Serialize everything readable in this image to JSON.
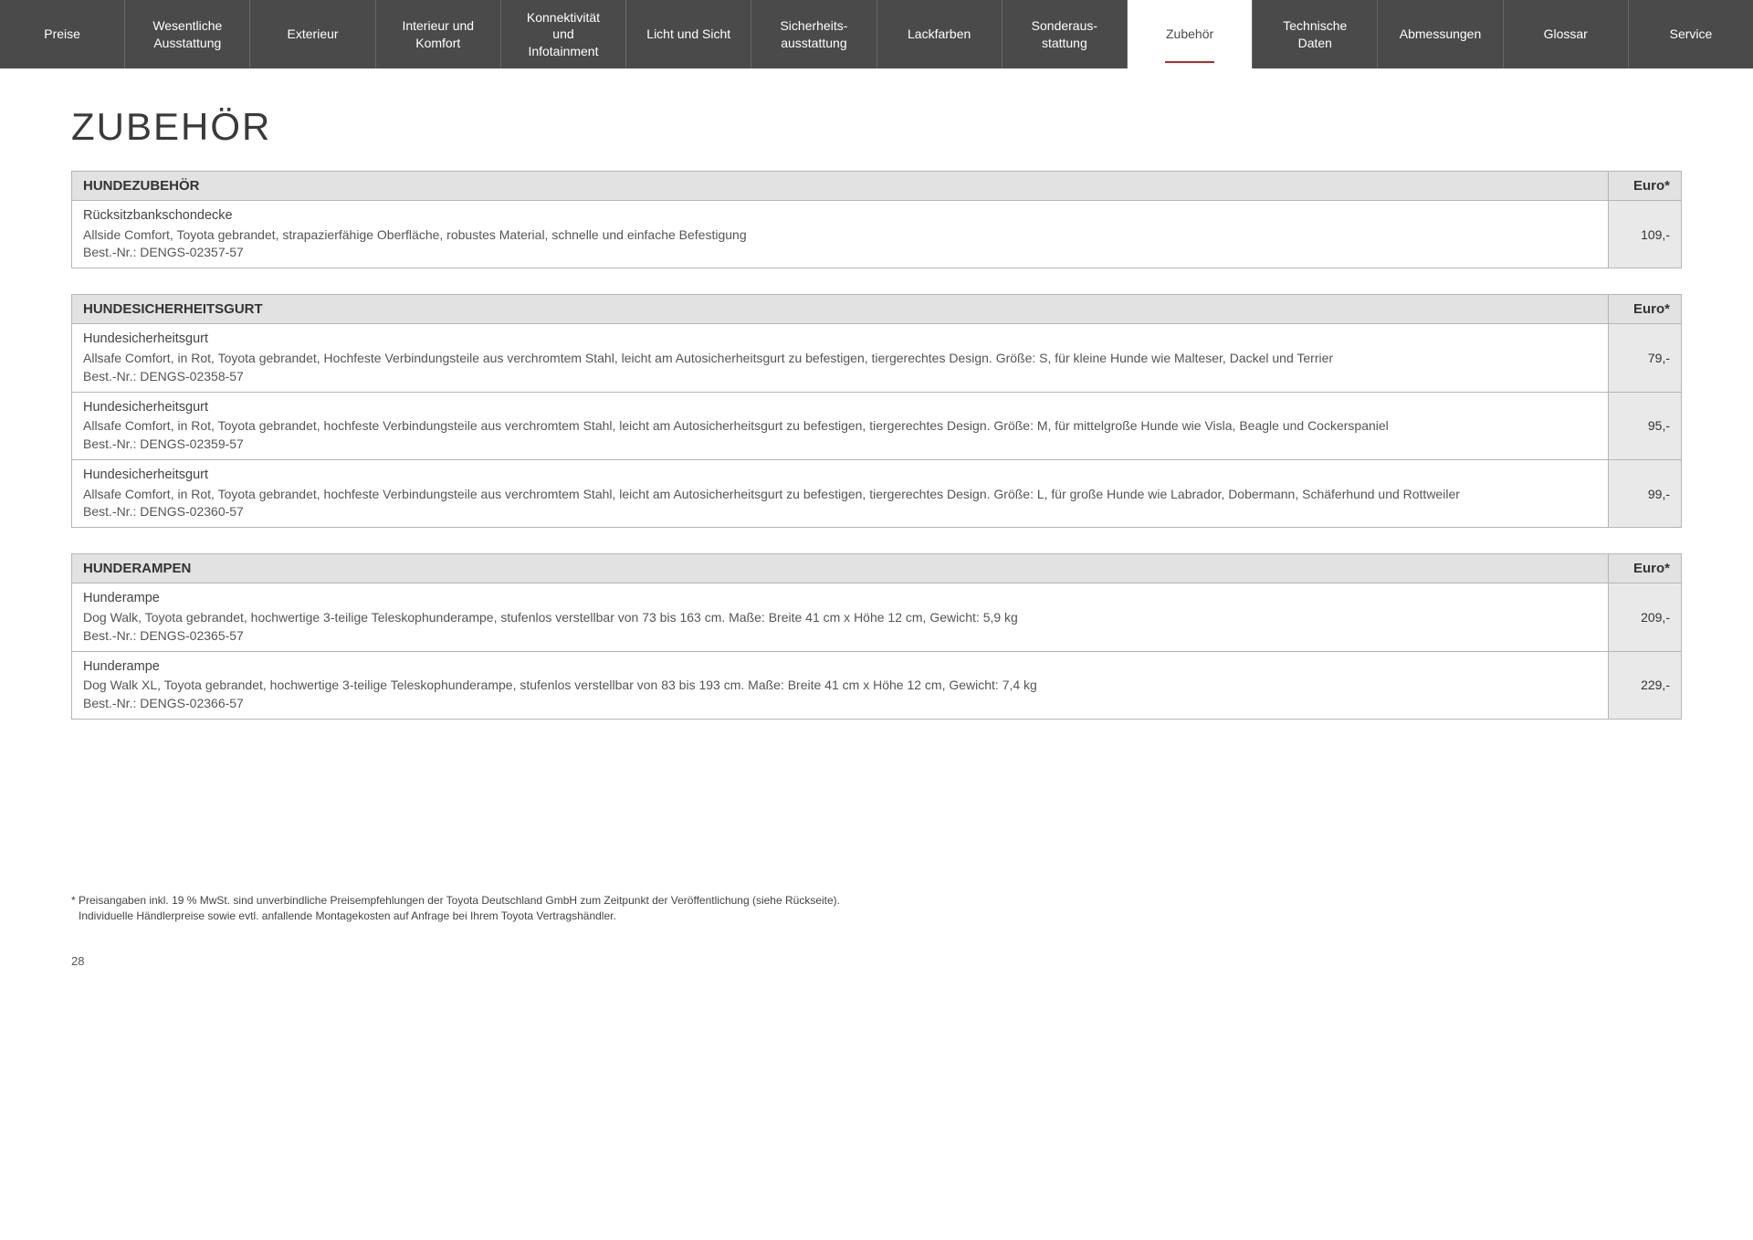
{
  "nav": {
    "items": [
      {
        "label": "Preise"
      },
      {
        "label": "Wesentliche\nAusstattung"
      },
      {
        "label": "Exterieur"
      },
      {
        "label": "Interieur und\nKomfort"
      },
      {
        "label": "Konnektivität\nund\nInfotainment"
      },
      {
        "label": "Licht und Sicht"
      },
      {
        "label": "Sicherheits-\nausstattung"
      },
      {
        "label": "Lackfarben"
      },
      {
        "label": "Sonderaus-\nstattung"
      },
      {
        "label": "Zubehör",
        "active": true
      },
      {
        "label": "Technische\nDaten"
      },
      {
        "label": "Abmessungen"
      },
      {
        "label": "Glossar"
      },
      {
        "label": "Service"
      }
    ]
  },
  "page_title": "ZUBEHÖR",
  "price_header": "Euro*",
  "sections": [
    {
      "title": "HUNDEZUBEHÖR",
      "items": [
        {
          "name": "Rücksitzbankschondecke",
          "desc": "Allside Comfort, Toyota gebrandet, strapazierfähige Oberfläche, robustes Material, schnelle und einfache Befestigung",
          "order": "Best.-Nr.: DENGS-02357-57",
          "price": "109,-"
        }
      ]
    },
    {
      "title": "HUNDESICHERHEITSGURT",
      "items": [
        {
          "name": "Hundesicherheitsgurt",
          "desc": "Allsafe Comfort, in Rot, Toyota gebrandet, Hochfeste Verbindungsteile aus verchromtem Stahl, leicht am Autosicherheitsgurt zu befestigen, tiergerechtes Design. Größe: S, für kleine Hunde wie Malteser, Dackel und Terrier",
          "order": "Best.-Nr.: DENGS-02358-57",
          "price": "79,-"
        },
        {
          "name": "Hundesicherheitsgurt",
          "desc": "Allsafe Comfort, in Rot, Toyota gebrandet, hochfeste Verbindungsteile aus verchromtem Stahl, leicht am Autosicherheitsgurt zu befestigen, tiergerechtes Design. Größe: M, für mittelgroße Hunde wie Visla, Beagle und Cockerspaniel",
          "order": "Best.-Nr.: DENGS-02359-57",
          "price": "95,-"
        },
        {
          "name": "Hundesicherheitsgurt",
          "desc": "Allsafe Comfort, in Rot, Toyota gebrandet, hochfeste Verbindungsteile aus verchromtem Stahl, leicht am Autosicherheitsgurt zu befestigen, tiergerechtes Design. Größe: L, für große Hunde wie Labrador, Dobermann, Schäferhund und Rottweiler",
          "order": "Best.-Nr.: DENGS-02360-57",
          "price": "99,-"
        }
      ]
    },
    {
      "title": "HUNDERAMPEN",
      "items": [
        {
          "name": "Hunderampe",
          "desc": "Dog Walk, Toyota gebrandet, hochwertige 3-teilige Teleskophunderampe, stufenlos verstellbar von 73 bis 163 cm. Maße: Breite 41 cm x Höhe 12 cm, Gewicht: 5,9 kg",
          "order": "Best.-Nr.: DENGS-02365-57",
          "price": "209,-"
        },
        {
          "name": "Hunderampe",
          "desc": "Dog Walk XL, Toyota gebrandet, hochwertige 3-teilige Teleskophunderampe, stufenlos verstellbar von 83 bis 193 cm. Maße: Breite 41 cm x Höhe 12 cm, Gewicht: 7,4 kg",
          "order": "Best.-Nr.: DENGS-02366-57",
          "price": "229,-"
        }
      ]
    }
  ],
  "footnote": {
    "line1": "* Preisangaben inkl. 19 % MwSt. sind unverbindliche Preisempfehlungen der Toyota Deutschland GmbH zum Zeitpunkt der Veröffentlichung (siehe Rückseite).",
    "line2": "Individuelle Händlerpreise sowie evtl. anfallende Montagekosten auf Anfrage bei Ihrem Toyota Vertragshändler."
  },
  "page_number": "28",
  "colors": {
    "nav_bg": "#4a4a4a",
    "nav_text": "#ffffff",
    "active_underline": "#b02a30",
    "header_bg": "#e2e2e2",
    "price_bg": "#e9e9e9",
    "border": "#b5b5b5",
    "text": "#4a4a4a"
  }
}
